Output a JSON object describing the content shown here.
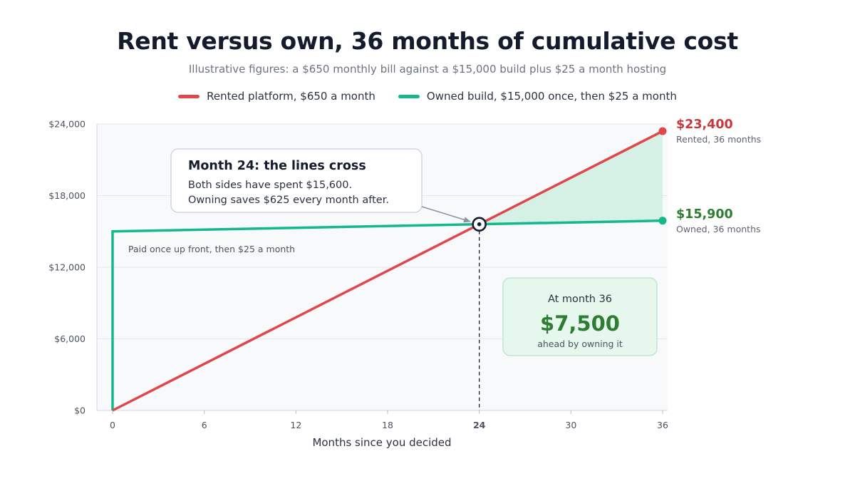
{
  "title": "Rent versus own, 36 months of cumulative cost",
  "subtitle": "Illustrative figures: a $650 monthly bill against a $15,000 build plus $25 a month hosting",
  "legend": [
    {
      "label": "Rented platform, $650 a month",
      "color": "#e0474c"
    },
    {
      "label": "Owned build, $15,000 once, then $25 a month",
      "color": "#14b88c"
    }
  ],
  "colors": {
    "rented": "#e0474c",
    "owned": "#14b88c",
    "rented_text": "#c8383d",
    "owned_text": "#2e7d32",
    "savings_fill": "#d3efe4",
    "plot_bg": "#f8f9fb"
  },
  "chart_data": {
    "type": "line",
    "xlabel": "Months since you decided",
    "ylabel": "",
    "xlim": [
      0,
      36
    ],
    "ylim": [
      0,
      24000
    ],
    "x_ticks": [
      "0",
      "6",
      "12",
      "18",
      "24",
      "30",
      "36"
    ],
    "y_ticks": [
      "$0",
      "$6,000",
      "$12,000",
      "$18,000",
      "$24,000"
    ],
    "highlighted_x_tick": "24",
    "grid": true,
    "legend_position": "top-center",
    "series": [
      {
        "name": "Rented platform, $650 a month",
        "x": [
          0,
          36
        ],
        "y": [
          0,
          23400
        ]
      },
      {
        "name": "Owned build, $15,000 once, then $25 a month",
        "x": [
          0,
          0,
          36
        ],
        "y": [
          0,
          15000,
          15900
        ]
      }
    ],
    "crossover": {
      "x": 24,
      "y": 15600
    },
    "end_labels": [
      {
        "value": "$23,400",
        "note": "Rented, 36 months"
      },
      {
        "value": "$15,900",
        "note": "Owned, 36 months"
      }
    ],
    "annotations": {
      "crossover_title": "Month 24: the lines cross",
      "crossover_line1": "Both sides have spent $15,600.",
      "crossover_line2": "Owning saves $625 every month after.",
      "owned_note": "Paid once up front, then $25 a month",
      "savings_heading": "At month 36",
      "savings_value": "$7,500",
      "savings_caption": "ahead by owning it"
    }
  }
}
